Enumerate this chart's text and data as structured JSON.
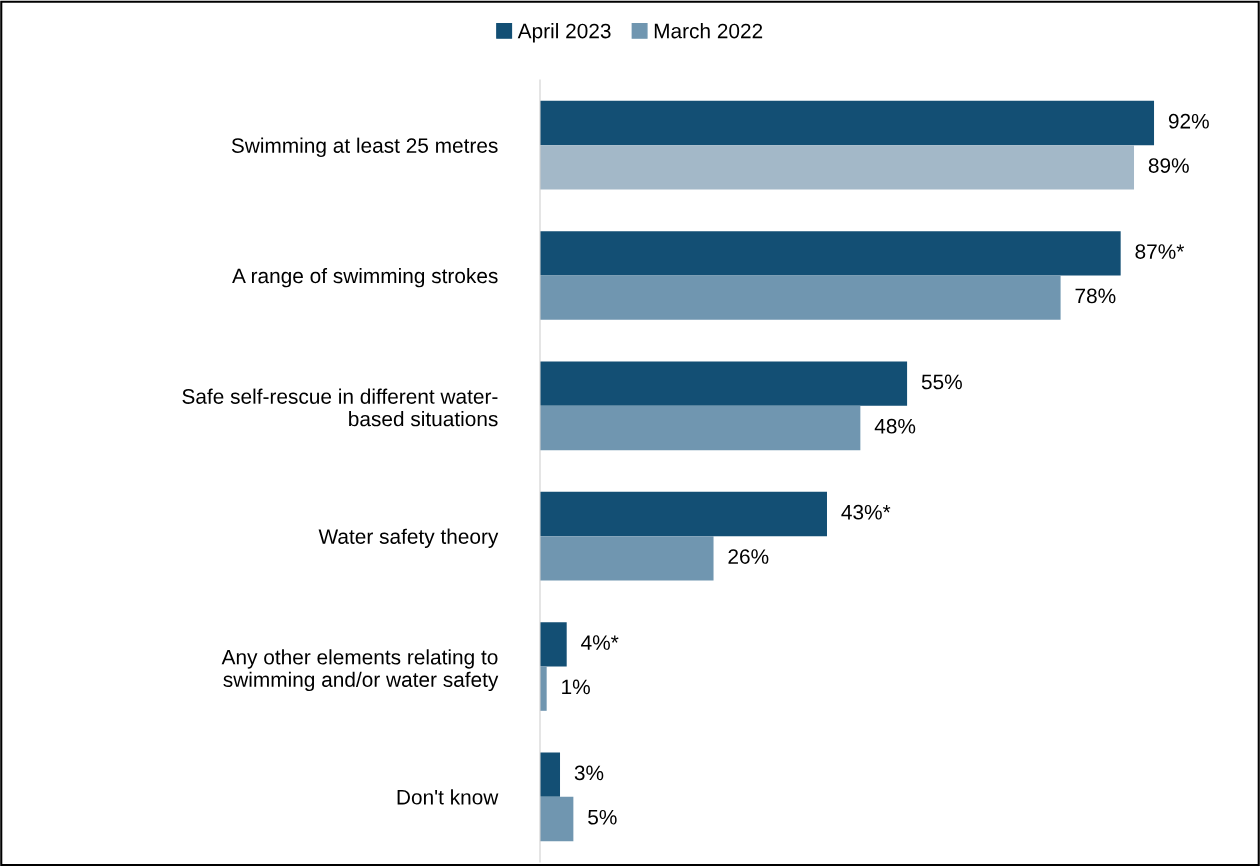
{
  "chart_data": {
    "type": "bar",
    "orientation": "horizontal",
    "categories": [
      "Swimming at least 25 metres",
      "A range of swimming strokes",
      "Safe self-rescue in different water-\nbased situations",
      "Water safety theory",
      "Any other elements relating to\nswimming and/or water safety",
      "Don't know"
    ],
    "series": [
      {
        "name": "April 2023",
        "color": "#134f74",
        "values": [
          92,
          87,
          55,
          43,
          4,
          3
        ],
        "value_labels": [
          "92%",
          "87%*",
          "55%",
          "43%*",
          "4%*",
          "3%"
        ]
      },
      {
        "name": "March 2022",
        "color": "#7096b0",
        "colors": [
          "#a3b8c8",
          "#7096b0",
          "#7096b0",
          "#7096b0",
          "#7096b0",
          "#7096b0"
        ],
        "values": [
          89,
          78,
          48,
          26,
          1,
          5
        ],
        "value_labels": [
          "89%",
          "78%",
          "48%",
          "26%",
          "1%",
          "5%"
        ]
      }
    ],
    "legend": "top",
    "grid": false,
    "tick_labels": "y"
  }
}
